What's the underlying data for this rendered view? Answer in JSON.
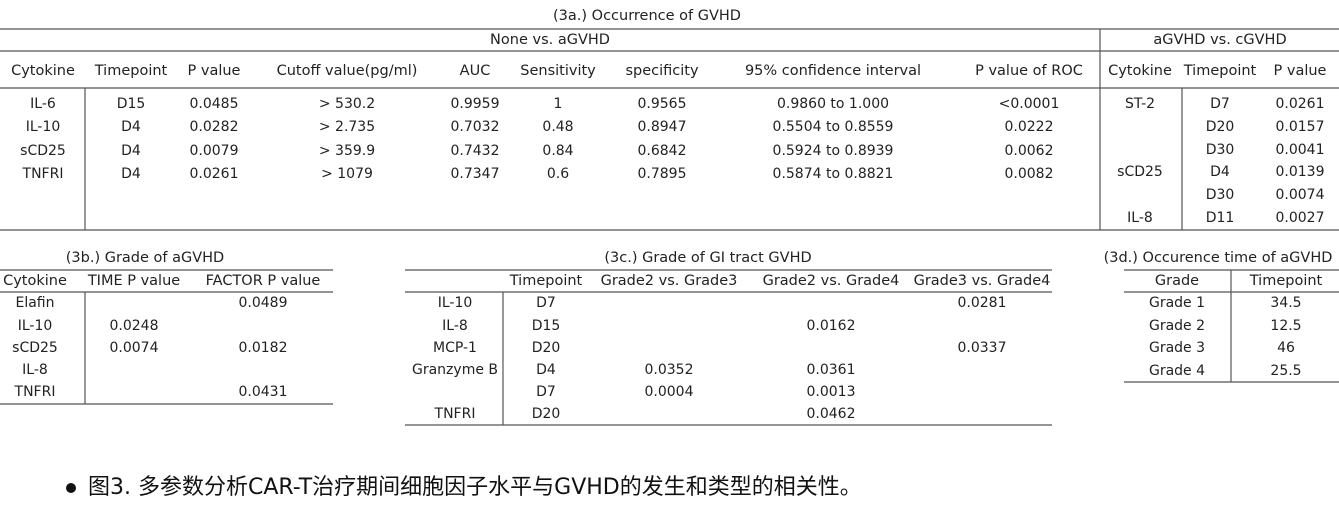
{
  "table_3a": {
    "title": "(3a.)  Occurrence of GVHD",
    "groups": [
      "None vs. aGVHD",
      "aGVHD vs. cGVHD"
    ],
    "left": {
      "columns": [
        "Cytokine",
        "Timepoint",
        "P value",
        "Cutoff value(pg/ml)",
        "AUC",
        "Sensitivity",
        "specificity",
        "95% confidence interval",
        "P value of ROC"
      ],
      "rows": [
        [
          "IL-6",
          "D15",
          "0.0485",
          "> 530.2",
          "0.9959",
          "1",
          "0.9565",
          "0.9860 to 1.000",
          "<0.0001"
        ],
        [
          "IL-10",
          "D4",
          "0.0282",
          "> 2.735",
          "0.7032",
          "0.48",
          "0.8947",
          "0.5504 to 0.8559",
          "0.0222"
        ],
        [
          "sCD25",
          "D4",
          "0.0079",
          "> 359.9",
          "0.7432",
          "0.84",
          "0.6842",
          "0.5924 to 0.8939",
          "0.0062"
        ],
        [
          "TNFRI",
          "D4",
          "0.0261",
          "> 1079",
          "0.7347",
          "0.6",
          "0.7895",
          "0.5874 to 0.8821",
          "0.0082"
        ]
      ]
    },
    "right": {
      "columns": [
        "Cytokine",
        "Timepoint",
        "P value"
      ],
      "rows": [
        [
          "ST-2",
          "D7",
          "0.0261"
        ],
        [
          null,
          "D20",
          "0.0157"
        ],
        [
          null,
          "D30",
          "0.0041"
        ],
        [
          "sCD25",
          "D4",
          "0.0139"
        ],
        [
          null,
          "D30",
          "0.0074"
        ],
        [
          "IL-8",
          "D11",
          "0.0027"
        ]
      ]
    }
  },
  "table_3b": {
    "title": "(3b.)  Grade of aGVHD",
    "columns": [
      "Cytokine",
      "TIME P value",
      "FACTOR P value"
    ],
    "rows": [
      [
        "Elafin",
        null,
        "0.0489"
      ],
      [
        "IL-10",
        "0.0248",
        null
      ],
      [
        "sCD25",
        "0.0074",
        "0.0182"
      ],
      [
        "IL-8",
        null,
        null
      ],
      [
        "TNFRI",
        null,
        "0.0431"
      ]
    ]
  },
  "table_3c": {
    "title": "(3c.) Grade of GI tract GVHD",
    "columns": [
      null,
      "Timepoint",
      "Grade2 vs. Grade3",
      "Grade2 vs. Grade4",
      "Grade3 vs. Grade4"
    ],
    "rows": [
      [
        "IL-10",
        "D7",
        null,
        null,
        "0.0281"
      ],
      [
        "IL-8",
        "D15",
        null,
        "0.0162",
        null
      ],
      [
        "MCP-1",
        "D20",
        null,
        null,
        "0.0337"
      ],
      [
        "Granzyme B",
        "D4",
        "0.0352",
        "0.0361",
        null
      ],
      [
        null,
        "D7",
        "0.0004",
        "0.0013",
        null
      ],
      [
        "TNFRI",
        "D20",
        null,
        "0.0462",
        null
      ]
    ]
  },
  "table_3d": {
    "title": "(3d.) Occurence time of aGVHD",
    "columns": [
      "Grade",
      "Timepoint"
    ],
    "rows": [
      [
        "Grade 1",
        "34.5"
      ],
      [
        "Grade 2",
        "12.5"
      ],
      [
        "Grade 3",
        "46"
      ],
      [
        "Grade 4",
        "25.5"
      ]
    ]
  },
  "caption": "图3. 多参数分析CAR-T治疗期间细胞因子水平与GVHD的发生和类型的相关性。"
}
